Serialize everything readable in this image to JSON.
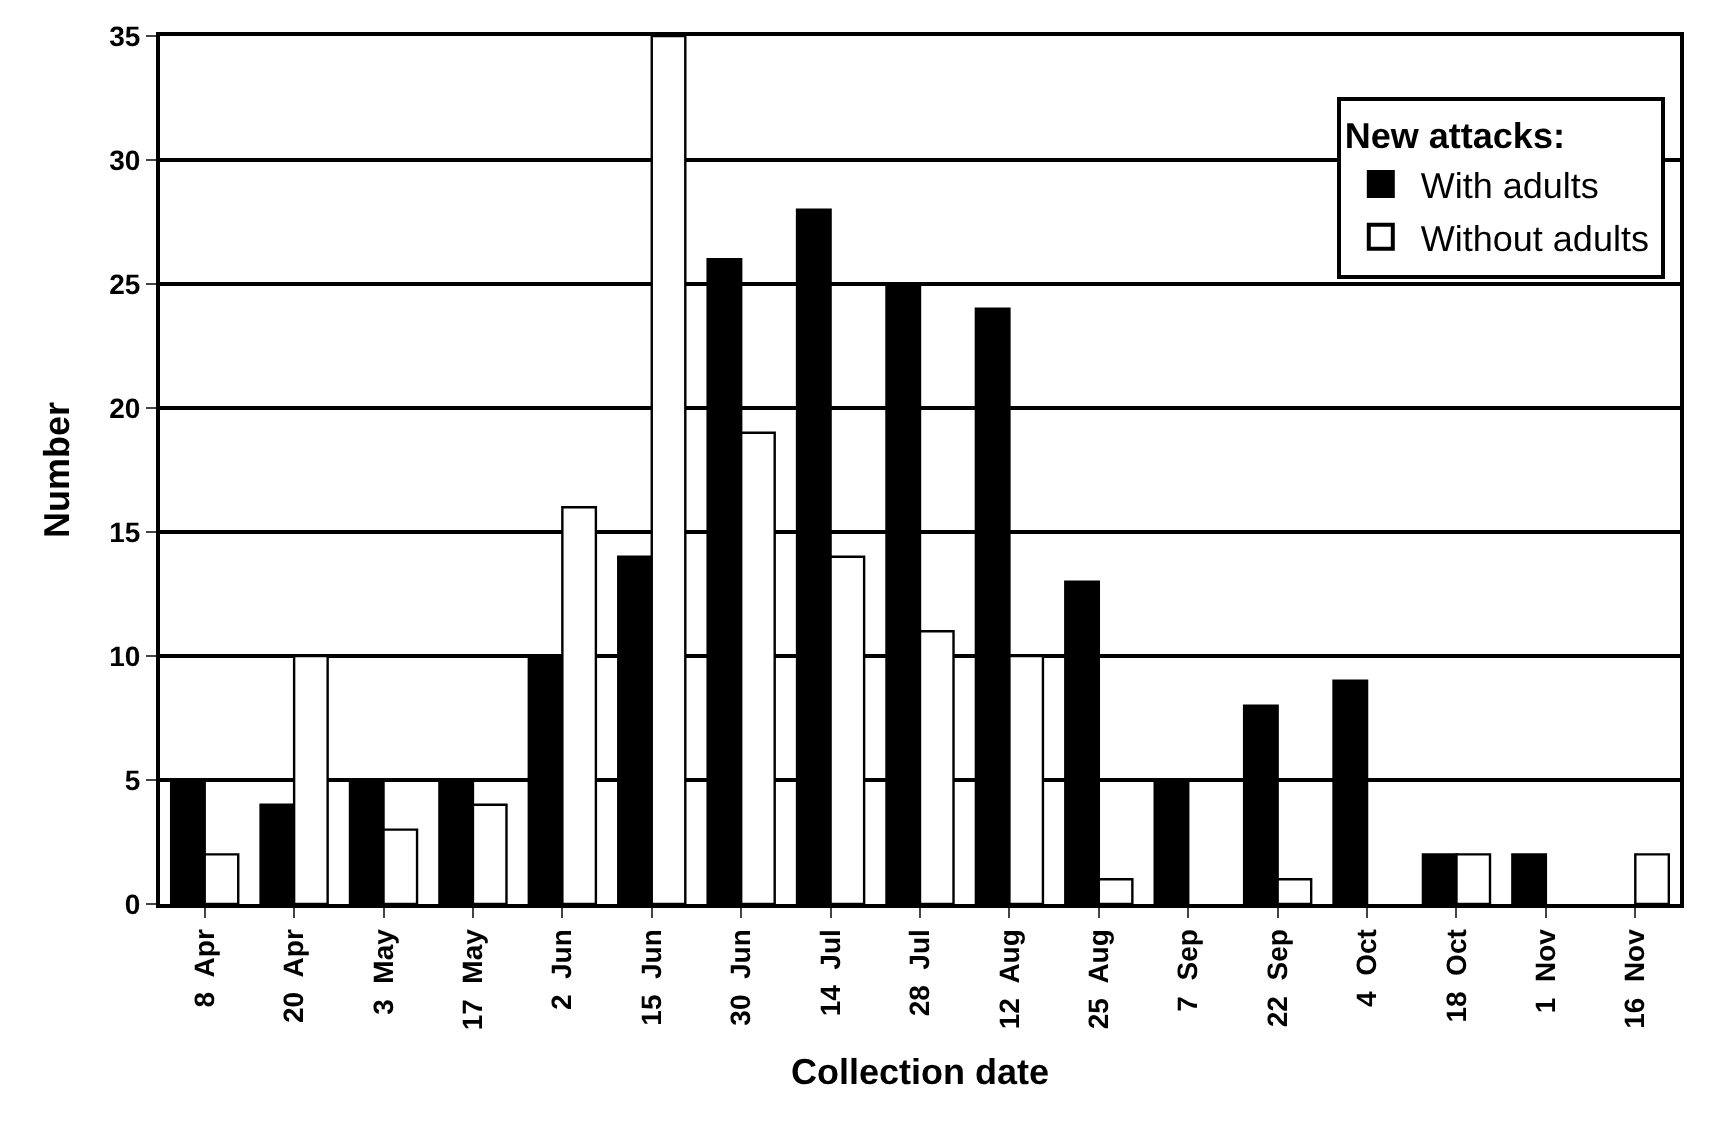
{
  "chart_data": {
    "type": "bar",
    "xlabel": "Collection date",
    "ylabel": "Number",
    "legend_title": "New attacks:",
    "categories": [
      "8  Apr",
      "20  Apr",
      "3  May",
      "17  May",
      "2  Jun",
      "15  Jun",
      "30  Jun",
      "14  Jul",
      "28  Jul",
      "12  Aug",
      "25  Aug",
      "7  Sep",
      "22  Sep",
      "4  Oct",
      "18  Oct",
      "1  Nov",
      "16  Nov"
    ],
    "series": [
      {
        "name": "With adults",
        "color": "#000000",
        "values": [
          5,
          4,
          5,
          5,
          10,
          14,
          26,
          28,
          25,
          24,
          13,
          5,
          8,
          9,
          2,
          2,
          0
        ]
      },
      {
        "name": "Without adults",
        "color": "#ffffff",
        "values": [
          2,
          10,
          3,
          4,
          16,
          35,
          19,
          14,
          11,
          10,
          1,
          0,
          1,
          0,
          2,
          0,
          2
        ]
      }
    ],
    "ylim": [
      0,
      35
    ],
    "yticks": [
      0,
      5,
      10,
      15,
      20,
      25,
      30,
      35
    ],
    "grid": "y",
    "legend": "top right"
  }
}
